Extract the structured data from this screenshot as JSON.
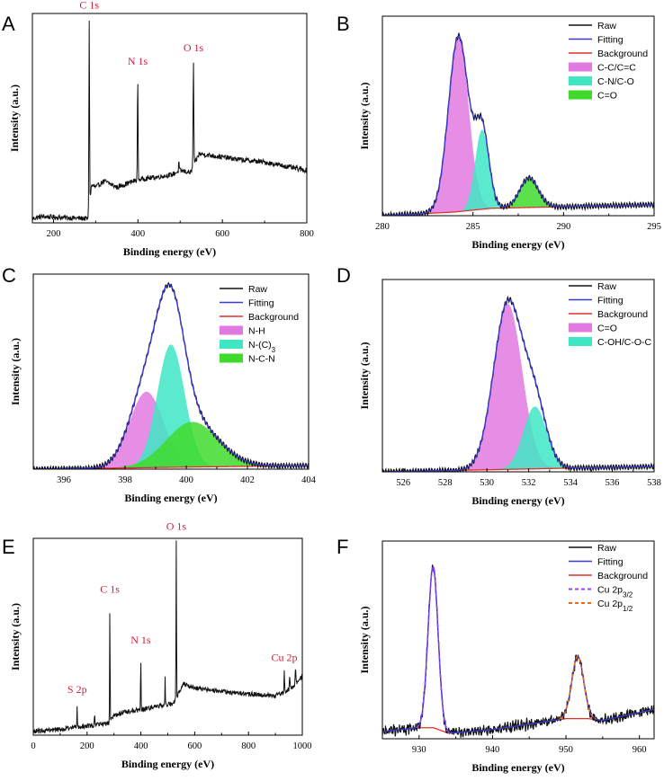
{
  "colors": {
    "raw": "#111111",
    "fitting": "#3a3ad6",
    "background": "#e0302c",
    "pink": "#e279e0",
    "cyan": "#3ee6c4",
    "green": "#3fda2c",
    "purple_dash": "#9a3ff0",
    "orange_dash": "#f06a14",
    "annotation": "#cc1f3c"
  },
  "chart_data": [
    {
      "panel": "A",
      "type": "line",
      "xlabel": "Binding energy (eV)",
      "ylabel": "Intensity (a.u.)",
      "xlim": [
        150,
        800
      ],
      "ylim": [
        0,
        1
      ],
      "xticks": [
        200,
        400,
        600,
        800
      ],
      "annotations": [
        {
          "text": "C 1s",
          "x": 284.6
        },
        {
          "text": "N 1s",
          "x": 399.5
        },
        {
          "text": "O 1s",
          "x": 531.5
        }
      ],
      "survey": {
        "base": [
          [
            150,
            0.02
          ],
          [
            170,
            0.03
          ],
          [
            230,
            0.025
          ],
          [
            282,
            0.02
          ],
          [
            290,
            0.18
          ],
          [
            300,
            0.17
          ],
          [
            320,
            0.2
          ],
          [
            350,
            0.17
          ],
          [
            390,
            0.2
          ],
          [
            410,
            0.21
          ],
          [
            450,
            0.22
          ],
          [
            480,
            0.23
          ],
          [
            500,
            0.25
          ],
          [
            525,
            0.24
          ],
          [
            545,
            0.33
          ],
          [
            580,
            0.32
          ],
          [
            650,
            0.3
          ],
          [
            700,
            0.29
          ],
          [
            750,
            0.27
          ],
          [
            800,
            0.25
          ]
        ],
        "peaks": [
          {
            "x": 284.6,
            "h": 0.9,
            "w": 1.8
          },
          {
            "x": 399.5,
            "h": 0.5,
            "w": 1.8
          },
          {
            "x": 531.5,
            "h": 0.5,
            "w": 2.0
          },
          {
            "x": 497,
            "h": 0.05,
            "w": 1.5
          }
        ],
        "noise": 0.012
      }
    },
    {
      "panel": "B",
      "type": "line",
      "xlabel": "Binding energy (eV)",
      "ylabel": "Intensity (a.u.)",
      "xlim": [
        280,
        295
      ],
      "ylim": [
        0,
        1.08
      ],
      "xticks": [
        280,
        285,
        290,
        295
      ],
      "legend": [
        "Raw",
        "Fitting",
        "Background",
        "C-C/C=C",
        "C-N/C-O",
        "C=O"
      ],
      "background": [
        [
          280,
          0.0
        ],
        [
          284,
          0.02
        ],
        [
          286,
          0.04
        ],
        [
          295,
          0.06
        ]
      ],
      "components": [
        {
          "name": "C-C/C=C",
          "center": 284.2,
          "height": 0.95,
          "fwhm": 1.3,
          "color": "pink"
        },
        {
          "name": "C-N/C-O",
          "center": 285.5,
          "height": 0.43,
          "fwhm": 0.9,
          "color": "cyan"
        },
        {
          "name": "C=O",
          "center": 288.1,
          "height": 0.16,
          "fwhm": 1.2,
          "color": "green"
        }
      ],
      "noise": 0.005
    },
    {
      "panel": "C",
      "type": "line",
      "xlabel": "Binding energy (eV)",
      "ylabel": "Intensity (a.u.)",
      "xlim": [
        395,
        404
      ],
      "ylim": [
        0,
        1.08
      ],
      "xticks": [
        396,
        398,
        400,
        402,
        404
      ],
      "legend": [
        "Raw",
        "Fitting",
        "Background",
        "N-H",
        "N-(C)3",
        "N-C-N"
      ],
      "background": [
        [
          395,
          0.0
        ],
        [
          404,
          0.02
        ]
      ],
      "components": [
        {
          "name": "N-H",
          "center": 398.7,
          "height": 0.42,
          "fwhm": 1.3,
          "color": "pink"
        },
        {
          "name": "N-(C)3",
          "center": 399.5,
          "height": 0.68,
          "fwhm": 1.05,
          "color": "cyan"
        },
        {
          "name": "N-C-N",
          "center": 400.2,
          "height": 0.25,
          "fwhm": 2.0,
          "color": "green"
        }
      ],
      "noise": 0.004
    },
    {
      "panel": "D",
      "type": "line",
      "xlabel": "Binding energy (eV)",
      "ylabel": "Intensity (a.u.)",
      "xlim": [
        525,
        538
      ],
      "ylim": [
        0,
        1.08
      ],
      "xticks": [
        526,
        528,
        530,
        532,
        534,
        536,
        538
      ],
      "legend": [
        "Raw",
        "Fitting",
        "Background",
        "C=O",
        "C-OH/C-O-C"
      ],
      "background": [
        [
          525,
          0.0
        ],
        [
          538,
          0.03
        ]
      ],
      "components": [
        {
          "name": "C=O",
          "center": 531.0,
          "height": 0.93,
          "fwhm": 1.6,
          "color": "pink"
        },
        {
          "name": "C-OH/C-O-C",
          "center": 532.3,
          "height": 0.35,
          "fwhm": 1.3,
          "color": "cyan"
        }
      ],
      "noise": 0.005
    },
    {
      "panel": "E",
      "type": "line",
      "xlabel": "Binding energy (eV)",
      "ylabel": "Intensity (a.u.)",
      "xlim": [
        0,
        1000
      ],
      "ylim": [
        0,
        1
      ],
      "xticks": [
        0,
        200,
        400,
        600,
        800,
        1000
      ],
      "annotations": [
        {
          "text": "S 2p",
          "x": 163
        },
        {
          "text": "C 1s",
          "x": 284.6
        },
        {
          "text": "N 1s",
          "x": 399.5
        },
        {
          "text": "O 1s",
          "x": 531.5
        },
        {
          "text": "Cu 2p",
          "x": 933
        }
      ],
      "survey": {
        "base": [
          [
            0,
            0.02
          ],
          [
            100,
            0.03
          ],
          [
            160,
            0.04
          ],
          [
            220,
            0.05
          ],
          [
            280,
            0.06
          ],
          [
            300,
            0.1
          ],
          [
            350,
            0.12
          ],
          [
            400,
            0.13
          ],
          [
            480,
            0.15
          ],
          [
            520,
            0.16
          ],
          [
            560,
            0.26
          ],
          [
            600,
            0.24
          ],
          [
            700,
            0.22
          ],
          [
            800,
            0.21
          ],
          [
            900,
            0.2
          ],
          [
            960,
            0.24
          ],
          [
            1000,
            0.3
          ]
        ],
        "peaks": [
          {
            "x": 163,
            "h": 0.12,
            "w": 2
          },
          {
            "x": 228,
            "h": 0.06,
            "w": 2
          },
          {
            "x": 284.6,
            "h": 0.6,
            "w": 2
          },
          {
            "x": 399.5,
            "h": 0.28,
            "w": 2
          },
          {
            "x": 490,
            "h": 0.15,
            "w": 2
          },
          {
            "x": 531.5,
            "h": 0.8,
            "w": 2.2
          },
          {
            "x": 933,
            "h": 0.1,
            "w": 2.5
          },
          {
            "x": 953,
            "h": 0.06,
            "w": 2.5
          },
          {
            "x": 975,
            "h": 0.08,
            "w": 3
          }
        ],
        "noise": 0.012
      }
    },
    {
      "panel": "F",
      "type": "line",
      "xlabel": "Binding energy (eV)",
      "ylabel": "Intensity (a.u.)",
      "xlim": [
        925,
        962
      ],
      "ylim": [
        0,
        1.08
      ],
      "xticks": [
        930,
        940,
        950,
        960
      ],
      "legend": [
        "Raw",
        "Fitting",
        "Background",
        "Cu 2p3/2",
        "Cu 2p1/2"
      ],
      "background": [
        [
          925,
          0.04
        ],
        [
          930,
          0.06
        ],
        [
          932,
          0.06
        ],
        [
          934,
          0.03
        ],
        [
          940,
          0.05
        ],
        [
          950,
          0.11
        ],
        [
          953,
          0.11
        ],
        [
          955,
          0.1
        ],
        [
          962,
          0.16
        ]
      ],
      "components": [
        {
          "name": "Cu 2p3/2",
          "center": 931.9,
          "height": 0.88,
          "fwhm": 1.6,
          "dash": "purple_dash"
        },
        {
          "name": "Cu 2p1/2",
          "center": 951.6,
          "height": 0.34,
          "fwhm": 1.9,
          "dash": "orange_dash"
        }
      ],
      "noise": 0.03
    }
  ]
}
